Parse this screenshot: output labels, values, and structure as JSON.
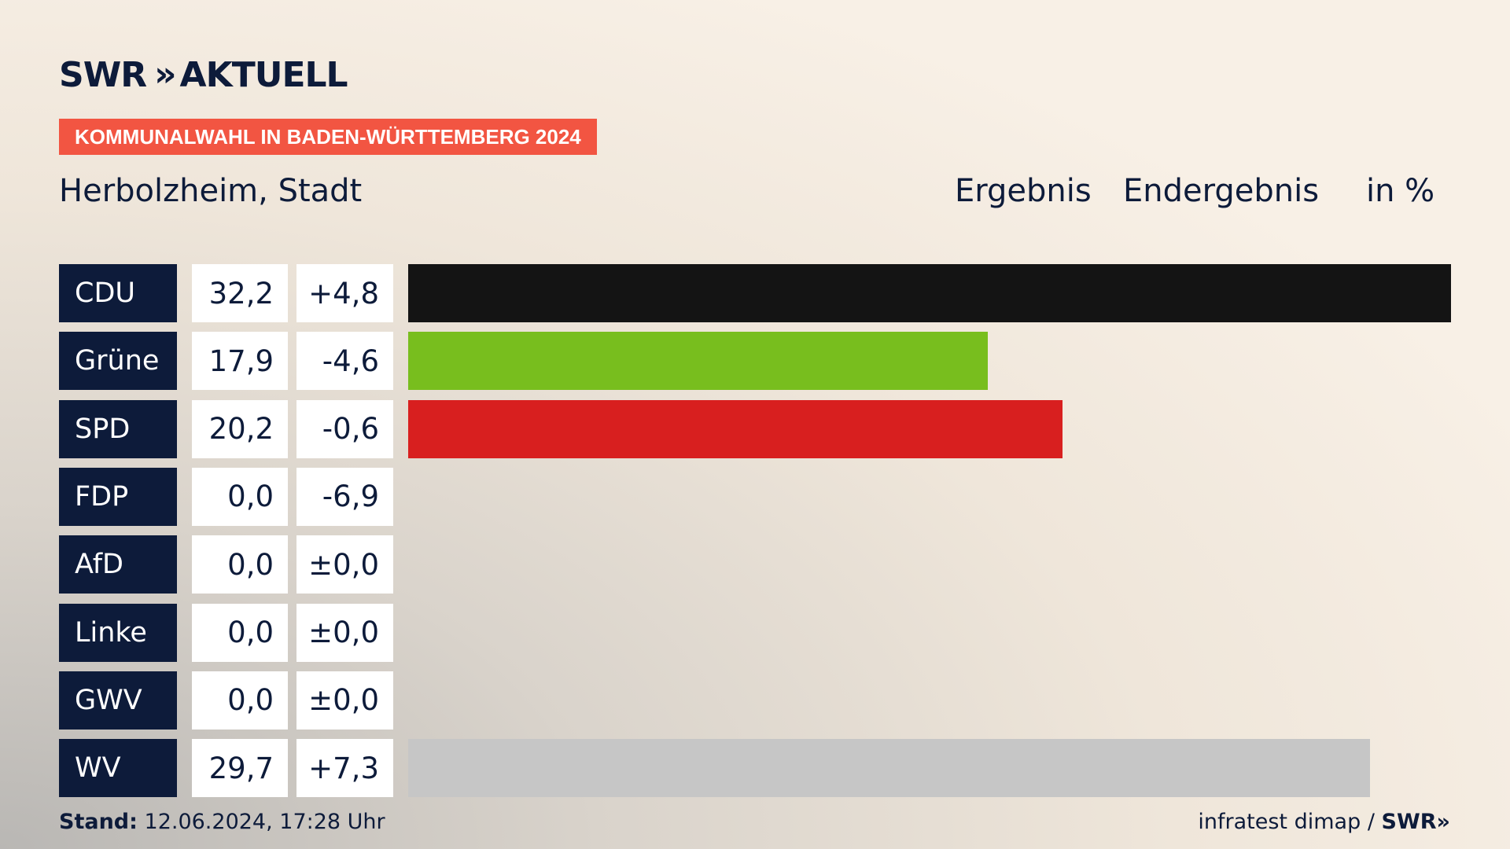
{
  "brand": {
    "logo_text": "SWR",
    "logo_sub": "AKTUELL",
    "footer_logo": "SWR"
  },
  "banner": "KOMMUNALWAHL IN BADEN-WÜRTTEMBERG 2024",
  "place": "Herbolzheim, Stadt",
  "header": {
    "col1": "Ergebnis",
    "col2": "Endergebnis",
    "col3": "in %"
  },
  "footer": {
    "stand_label": "Stand:",
    "stand_value": "12.06.2024, 17:28 Uhr",
    "source": "infratest dimap /"
  },
  "chart_data": {
    "type": "bar",
    "categories": [
      "CDU",
      "Grüne",
      "SPD",
      "FDP",
      "AfD",
      "Linke",
      "GWV",
      "WV"
    ],
    "values": [
      32.2,
      17.9,
      20.2,
      0.0,
      0.0,
      0.0,
      0.0,
      29.7
    ],
    "value_labels": [
      "32,2",
      "17,9",
      "20,2",
      "0,0",
      "0,0",
      "0,0",
      "0,0",
      "29,7"
    ],
    "diff_labels": [
      "+4,8",
      "-4,6",
      "-0,6",
      "-6,9",
      "±0,0",
      "±0,0",
      "±0,0",
      "+7,3"
    ],
    "colors": [
      "#141414",
      "#78be1e",
      "#d81f1f",
      "#ffe600",
      "#00a0e1",
      "#be3075",
      "#c6c6c6",
      "#c6c6c6"
    ],
    "xlim": [
      0,
      32.2
    ]
  }
}
